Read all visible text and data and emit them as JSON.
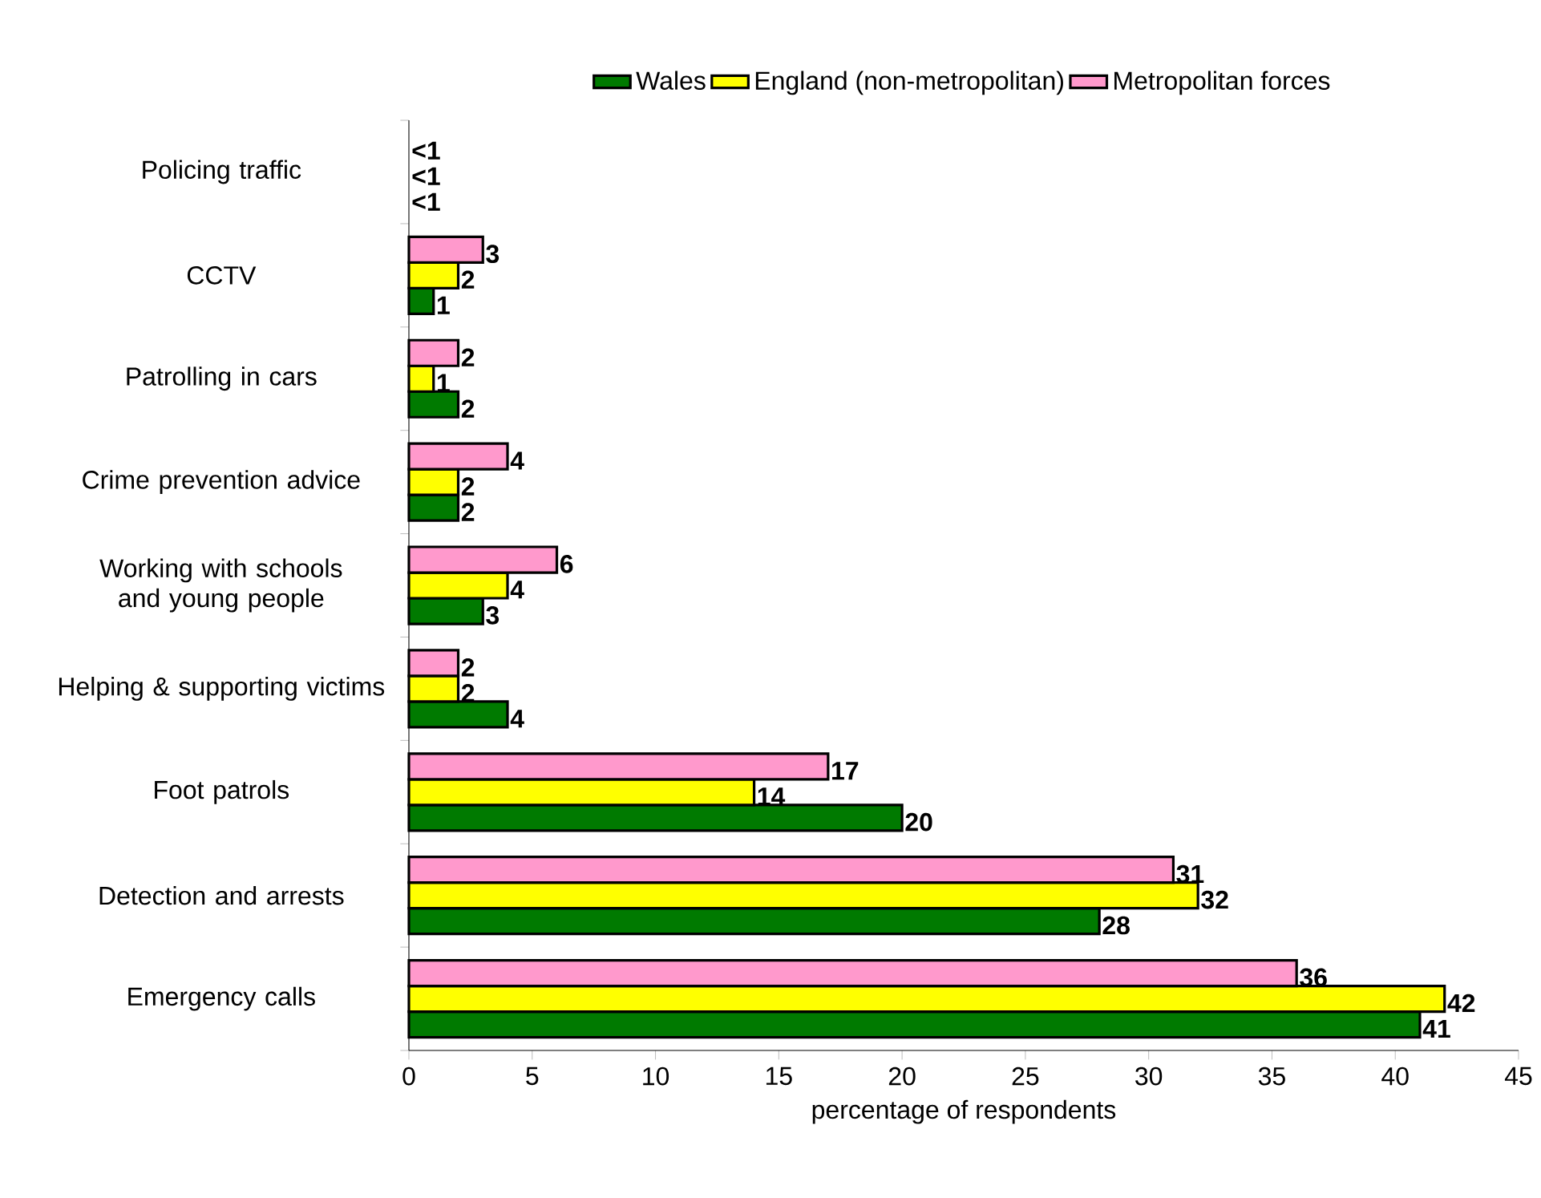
{
  "chart_data": {
    "type": "bar",
    "orientation": "horizontal",
    "xlabel": "percentage of respondents",
    "categories": [
      "Policing traffic",
      "CCTV",
      "Patrolling in cars",
      "Crime prevention advice",
      "Working with schools and young people",
      "Helping & supporting victims",
      "Foot patrols",
      "Detection and arrests",
      "Emergency calls"
    ],
    "series": [
      {
        "name": "Wales",
        "color": "#007a00",
        "values": [
          null,
          1,
          2,
          2,
          3,
          4,
          20,
          28,
          41
        ],
        "value_labels": [
          "<1",
          "1",
          "2",
          "2",
          "3",
          "4",
          "20",
          "28",
          "41"
        ]
      },
      {
        "name": "England (non-metropolitan)",
        "color": "#ffff00",
        "values": [
          null,
          2,
          1,
          2,
          4,
          2,
          14,
          32,
          42
        ],
        "value_labels": [
          "<1",
          "2",
          "1",
          "2",
          "4",
          "2",
          "14",
          "32",
          "42"
        ]
      },
      {
        "name": "Metropolitan forces",
        "color": "#ff99cc",
        "values": [
          null,
          3,
          2,
          4,
          6,
          2,
          17,
          31,
          36
        ],
        "value_labels": [
          "<1",
          "3",
          "2",
          "4",
          "6",
          "2",
          "17",
          "31",
          "36"
        ]
      }
    ],
    "xlim": [
      0,
      45
    ],
    "xticks": [
      0,
      5,
      10,
      15,
      20,
      25,
      30,
      35,
      40,
      45
    ],
    "grid": false,
    "legend": "top"
  }
}
